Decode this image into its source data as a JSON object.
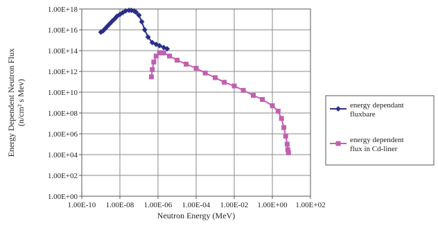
{
  "chart_data": {
    "type": "line",
    "title": "",
    "xlabel": "Neutron Energy (MeV)",
    "ylabel_lines": [
      "Energy Dependent Neutron Flux",
      "(n/cm² s Mev)"
    ],
    "x_scale": "log",
    "y_scale": "log",
    "xlim": [
      1e-10,
      100
    ],
    "ylim": [
      1,
      1e+18
    ],
    "x_ticks": [
      1e-10,
      1e-08,
      1e-06,
      0.0001,
      0.01,
      1,
      100
    ],
    "x_tick_labels": [
      "1.00E-10",
      "1.00E-08",
      "1.00E-06",
      "1.00E-04",
      "1.00E-02",
      "1.00E+00",
      "1.00E+02"
    ],
    "y_ticks": [
      1,
      100,
      10000.0,
      1000000.0,
      100000000.0,
      10000000000.0,
      1000000000000.0,
      100000000000000.0,
      1e+16,
      1e+18
    ],
    "y_tick_labels": [
      "1.00E+00",
      "1.00E+02",
      "1.00E+04",
      "1.00E+06",
      "1.00E+08",
      "1.00E+10",
      "1.00E+12",
      "1.00E+14",
      "1.00E+16",
      "1.00E+18"
    ],
    "grid": true,
    "legend_position": "right",
    "series": [
      {
        "name": "energy dependant fluxbare",
        "color": "#2b2f86",
        "marker": "diamond",
        "points": [
          [
            1e-09,
            6000000000000000.0
          ],
          [
            1.3e-09,
            8000000000000000.0
          ],
          [
            1.7e-09,
            1.3e+16
          ],
          [
            2.2e-09,
            2.2e+16
          ],
          [
            3e-09,
            4e+16
          ],
          [
            4e-09,
            7e+16
          ],
          [
            5.5e-09,
            1.2e+17
          ],
          [
            7e-09,
            2e+17
          ],
          [
            1e-08,
            3e+17
          ],
          [
            1.4e-08,
            4.5e+17
          ],
          [
            2e-08,
            6.5e+17
          ],
          [
            3e-08,
            7.5e+17
          ],
          [
            4e-08,
            7.5e+17
          ],
          [
            5.5e-08,
            6.5e+17
          ],
          [
            7e-08,
            5e+17
          ],
          [
            1e-07,
            2.5e+17
          ],
          [
            1.4e-07,
            6e+16
          ],
          [
            2e-07,
            1e+16
          ],
          [
            3e-07,
            2000000000000000.0
          ],
          [
            5e-07,
            600000000000000.0
          ],
          [
            8e-07,
            400000000000000.0
          ],
          [
            1.2e-06,
            300000000000000.0
          ],
          [
            2e-06,
            200000000000000.0
          ],
          [
            3e-06,
            150000000000000.0
          ]
        ]
      },
      {
        "name": "energy dependent flux in Cd-liner",
        "color": "#c060b0",
        "marker": "square",
        "points": [
          [
            4.5e-07,
            300000000000.0
          ],
          [
            5e-07,
            1500000000000.0
          ],
          [
            6e-07,
            8000000000000.0
          ],
          [
            8e-07,
            30000000000000.0
          ],
          [
            1.2e-06,
            60000000000000.0
          ],
          [
            2e-06,
            60000000000000.0
          ],
          [
            4e-06,
            30000000000000.0
          ],
          [
            1e-05,
            12000000000000.0
          ],
          [
            3e-05,
            5000000000000.0
          ],
          [
            0.0001,
            2000000000000.0
          ],
          [
            0.0003,
            700000000000.0
          ],
          [
            0.001,
            250000000000.0
          ],
          [
            0.003,
            90000000000.0
          ],
          [
            0.01,
            40000000000.0
          ],
          [
            0.03,
            15000000000.0
          ],
          [
            0.1,
            5000000000.0
          ],
          [
            0.3,
            2000000000.0
          ],
          [
            1,
            500000000.0
          ],
          [
            2,
            150000000.0
          ],
          [
            3,
            30000000.0
          ],
          [
            4,
            4000000.0
          ],
          [
            5,
            600000.0
          ],
          [
            6,
            100000.0
          ],
          [
            6.5,
            30000.0
          ],
          [
            7,
            15000.0
          ]
        ]
      }
    ]
  }
}
